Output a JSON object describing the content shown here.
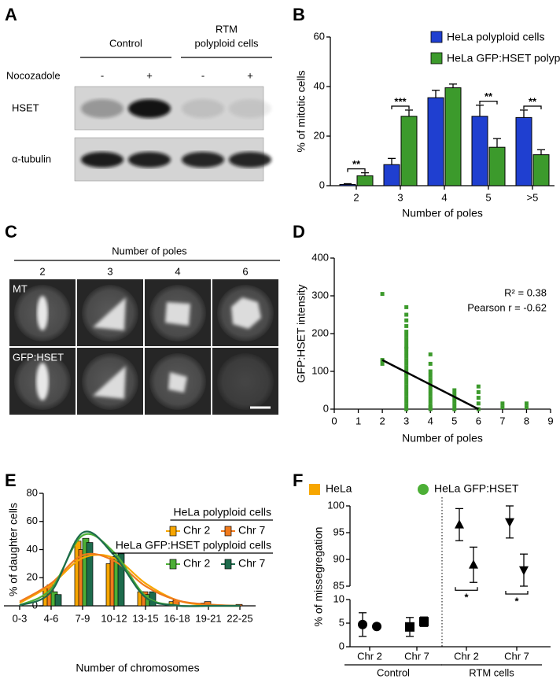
{
  "panel_labels": [
    "A",
    "B",
    "C",
    "D",
    "E",
    "F"
  ],
  "blot": {
    "group_headers": [
      [
        "Control"
      ],
      [
        "RTM",
        "polyploid cells"
      ]
    ],
    "treatment_label": "Nocozadole",
    "treatment": [
      "-",
      "+",
      "-",
      "+"
    ],
    "rows": [
      "HSET",
      "α-tubulin"
    ]
  },
  "micrographs": {
    "header": "Number of poles",
    "columns": [
      "2",
      "3",
      "4",
      "6"
    ],
    "rows": [
      "MT",
      "GFP:HSET"
    ]
  },
  "chart_data": [
    {
      "type": "bar",
      "ylabel": "% of mitotic cells",
      "xlabel": "Number of poles",
      "categories": [
        "2",
        "3",
        "4",
        "5",
        ">5"
      ],
      "series": [
        {
          "name": "HeLa polyploid cells",
          "color": "#1f3fd0",
          "values": [
            0.5,
            8.5,
            35.5,
            28,
            27.5
          ],
          "errors": [
            0.3,
            2.5,
            3,
            4.5,
            3
          ]
        },
        {
          "name": "HeLa GFP:HSET polyploid cells",
          "color": "#3c9a2c",
          "values": [
            4,
            28,
            39.5,
            15.5,
            12.5
          ],
          "errors": [
            1.2,
            2.5,
            1.5,
            3.5,
            2
          ]
        }
      ],
      "significance": [
        "**",
        "***",
        null,
        "**",
        "**"
      ],
      "ylim": [
        0,
        60
      ],
      "yticks": [
        0,
        20,
        40,
        60
      ],
      "legend": "top-right"
    },
    {
      "type": "scatter",
      "ylabel": "GFP:HSET intensity",
      "xlabel": "Number of poles",
      "annotations": [
        "R² = 0.38",
        "Pearson r = -0.62"
      ],
      "series": [
        {
          "color": "#3c9a2c",
          "x": [
            2,
            2,
            2,
            3,
            3,
            3,
            3,
            3,
            3,
            3,
            3,
            3,
            3,
            3,
            3,
            3,
            3,
            3,
            3,
            3,
            3,
            3,
            3,
            3,
            3,
            3,
            3,
            3,
            3,
            3,
            4,
            4,
            4,
            4,
            4,
            4,
            4,
            4,
            4,
            4,
            4,
            4,
            4,
            4,
            5,
            5,
            5,
            5,
            5,
            5,
            6,
            6,
            6,
            6,
            6,
            7,
            7,
            8,
            8
          ],
          "y": [
            305,
            130,
            120,
            270,
            250,
            235,
            220,
            205,
            195,
            185,
            175,
            165,
            160,
            150,
            140,
            130,
            120,
            110,
            100,
            95,
            90,
            80,
            70,
            60,
            50,
            40,
            30,
            20,
            10,
            0,
            145,
            120,
            100,
            90,
            80,
            70,
            60,
            50,
            40,
            30,
            20,
            10,
            5,
            0,
            50,
            40,
            30,
            20,
            10,
            0,
            60,
            45,
            30,
            15,
            0,
            15,
            5,
            15,
            5
          ]
        }
      ],
      "fit_line": {
        "color": "#000000",
        "x": [
          2,
          6
        ],
        "y": [
          130,
          0
        ]
      },
      "xlim": [
        0,
        9
      ],
      "xticks": [
        0,
        1,
        2,
        3,
        4,
        5,
        6,
        7,
        8,
        9
      ],
      "ylim": [
        0,
        400
      ],
      "yticks": [
        0,
        100,
        200,
        300,
        400
      ]
    },
    {
      "type": "bar",
      "ylabel": "% of daughter cells",
      "xlabel": "Number of chromosomes",
      "categories": [
        "0-3",
        "4-6",
        "7-9",
        "10-12",
        "13-15",
        "16-18",
        "19-21",
        "22-25"
      ],
      "series_groups": [
        {
          "name": "HeLa polyploid cells",
          "series": [
            {
              "name": "Chr 2",
              "color": "#f7a600",
              "values": [
                0,
                12,
                46,
                30,
                10,
                3,
                2,
                0
              ],
              "fit": [
                2,
                15,
                34,
                34,
                16,
                4,
                0.5,
                0
              ]
            },
            {
              "name": "Chr 7",
              "color": "#f07a1c",
              "values": [
                0,
                15,
                40,
                35,
                10,
                4,
                3,
                1
              ],
              "fit": [
                3,
                16,
                36,
                32,
                14,
                4,
                1,
                0
              ]
            }
          ]
        },
        {
          "name": "HeLa GFP:HSET polyploid cells",
          "series": [
            {
              "name": "Chr 2",
              "color": "#4caf36",
              "values": [
                0,
                10,
                48,
                35,
                8,
                0,
                0,
                0
              ],
              "fit": [
                0.5,
                12,
                50,
                38,
                7,
                0.3,
                0,
                0
              ]
            },
            {
              "name": "Chr 7",
              "color": "#1d6b4c",
              "values": [
                0,
                8,
                45,
                37,
                10,
                0,
                0,
                0
              ],
              "fit": [
                0.3,
                10,
                52,
                36,
                6,
                0.2,
                0,
                0
              ]
            }
          ]
        }
      ],
      "ylim": [
        0,
        80
      ],
      "yticks": [
        0,
        20,
        40,
        60,
        80
      ]
    },
    {
      "type": "dot",
      "ylabel": "% of missegregation",
      "categories": [
        "Chr 2",
        "Chr 7",
        "Chr 2",
        "Chr 7"
      ],
      "groups": [
        "Control",
        "RTM cells"
      ],
      "markers": [
        "circle",
        "square",
        "triangle-up",
        "triangle-down"
      ],
      "marker_color": "#000000",
      "legend_markers": [
        "square",
        "circle"
      ],
      "series": [
        {
          "name": "HeLa",
          "color": "#f7a600",
          "values": [
            4.7,
            4.2,
            96.5,
            97
          ],
          "errors": [
            2.5,
            2,
            3,
            3
          ]
        },
        {
          "name": "HeLa GFP:HSET",
          "color": "#4caf36",
          "values": [
            4.3,
            5.3,
            89,
            88
          ],
          "errors": [
            0.4,
            1,
            3.3,
            3
          ]
        }
      ],
      "significance": [
        null,
        null,
        "*",
        "*"
      ],
      "ylim": [
        0,
        100
      ],
      "ybreak": [
        10,
        85
      ],
      "yticks": [
        0,
        5,
        10,
        85,
        90,
        95,
        100
      ]
    }
  ]
}
